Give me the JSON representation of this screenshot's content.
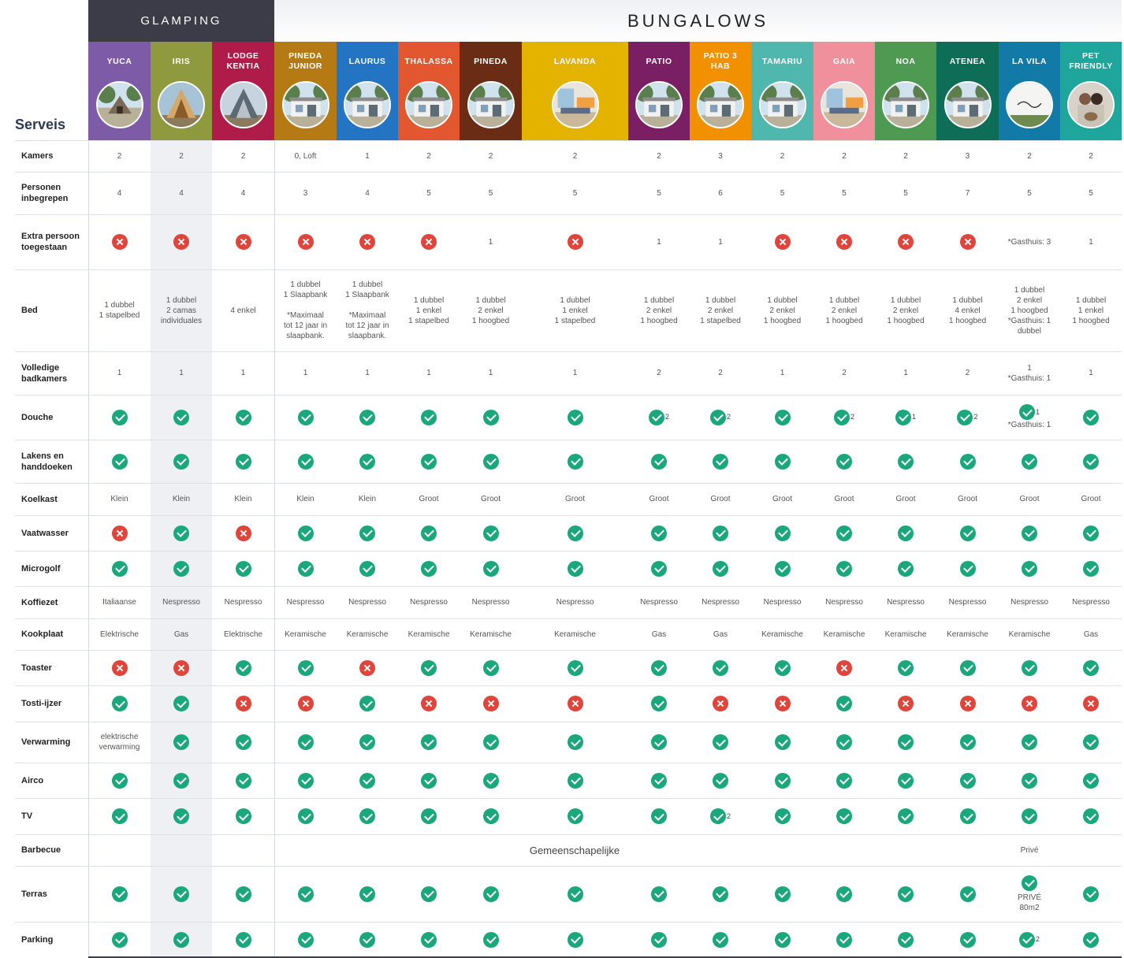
{
  "groups": {
    "glamping": "GLAMPING",
    "bungalows": "BUNGALOWS"
  },
  "side_title": "Serveis",
  "colors": {
    "check": "#1aa77c",
    "cross": "#e0443a",
    "dark_header": "#3c3c48"
  },
  "accommodations": [
    {
      "name": "YUCA",
      "color": "#7d5ba6",
      "photo_icon": "glamping-tent-photo"
    },
    {
      "name": "IRIS",
      "color": "#8f9a3e",
      "photo_icon": "a-frame-cabin-photo"
    },
    {
      "name": "LODGE KENTIA",
      "color": "#b01c4a",
      "photo_icon": "a-frame-lodge-photo"
    },
    {
      "name": "PINEDA JUNIOR",
      "color": "#b67a14",
      "photo_icon": "bungalow-photo"
    },
    {
      "name": "LAURUS",
      "color": "#2374c3",
      "photo_icon": "bungalow-photo"
    },
    {
      "name": "THALASSA",
      "color": "#e2572f",
      "photo_icon": "bungalow-photo"
    },
    {
      "name": "PINEDA",
      "color": "#6b2c16",
      "photo_icon": "bungalow-photo"
    },
    {
      "name": "LAVANDA",
      "color": "#e3b300",
      "photo_icon": "interior-photo"
    },
    {
      "name": "PATIO",
      "color": "#7b1f64",
      "photo_icon": "bungalow-photo"
    },
    {
      "name": "PATIO 3 HAB",
      "color": "#f29100",
      "photo_icon": "bungalow-photo"
    },
    {
      "name": "TAMARIU",
      "color": "#4fb7ad",
      "photo_icon": "bungalow-photo"
    },
    {
      "name": "GAIA",
      "color": "#f0909c",
      "photo_icon": "interior-photo"
    },
    {
      "name": "NOA",
      "color": "#4e9a52",
      "photo_icon": "bungalow-photo"
    },
    {
      "name": "ATENEA",
      "color": "#0d6d56",
      "photo_icon": "bungalow-photo"
    },
    {
      "name": "LA VILA",
      "color": "#127aa7",
      "photo_icon": "la-vila-logo-photo"
    },
    {
      "name": "PET FRIENDLY",
      "color": "#1ea69c",
      "photo_icon": "dog-family-photo"
    }
  ],
  "rows": [
    {
      "label": "Kamers",
      "cells": [
        "2",
        "2",
        "2",
        "0, Loft",
        "1",
        "2",
        "2",
        "2",
        "2",
        "3",
        "2",
        "2",
        "2",
        "3",
        "2",
        "2"
      ]
    },
    {
      "label": "Personen inbegrepen",
      "cells": [
        "4",
        "4",
        "4",
        "3",
        "4",
        "5",
        "5",
        "5",
        "5",
        "6",
        "5",
        "5",
        "5",
        "7",
        "5",
        "5"
      ]
    },
    {
      "label": "Extra persoon toegestaan",
      "cells": [
        "x",
        "x",
        "x",
        "x",
        "x",
        "x",
        "1",
        "x",
        "1",
        "1",
        "x",
        "x",
        "x",
        "x",
        "*Gasthuis: 3",
        "1"
      ]
    },
    {
      "label": "Bed",
      "cells": [
        "1 dubbel\n1 stapelbed",
        "1 dubbel\n2 camas\nindividuales",
        "4 enkel",
        "1 dubbel\n1 Slaapbank\n\n*Maximaal\ntot 12 jaar in\nslaapbank.",
        "1 dubbel\n1 Slaapbank\n\n*Maximaal\ntot 12 jaar in\nslaapbank.",
        "1 dubbel\n1 enkel\n1 stapelbed",
        "1 dubbel\n2 enkel\n1 hoogbed",
        "1 dubbel\n1 enkel\n1 stapelbed",
        "1 dubbel\n2 enkel\n1 hoogbed",
        "1 dubbel\n2 enkel\n1 stapelbed",
        "1 dubbel\n2 enkel\n1 hoogbed",
        "1 dubbel\n2 enkel\n1 hoogbed",
        "1 dubbel\n2 enkel\n1 hoogbed",
        "1 dubbel\n4 enkel\n1 hoogbed",
        "1 dubbel\n2 enkel\n1 hoogbed\n*Gasthuis: 1\ndubbel",
        "1 dubbel\n1 enkel\n1 hoogbed"
      ]
    },
    {
      "label": "Volledige badkamers",
      "cells": [
        "1",
        "1",
        "1",
        "1",
        "1",
        "1",
        "1",
        "1",
        "2",
        "2",
        "1",
        "2",
        "1",
        "2",
        "1\n*Gasthuis: 1",
        "1"
      ]
    },
    {
      "label": "Douche",
      "cells": [
        "v",
        "v",
        "v",
        "v",
        "v",
        "v",
        "v",
        "v",
        "v|2",
        "v|2",
        "v",
        "v|2",
        "v|1",
        "v|2",
        "v|1|*Gasthuis: 1",
        "v"
      ]
    },
    {
      "label": "Lakens en handdoeken",
      "cells": [
        "v",
        "v",
        "v",
        "v",
        "v",
        "v",
        "v",
        "v",
        "v",
        "v",
        "v",
        "v",
        "v",
        "v",
        "v",
        "v"
      ]
    },
    {
      "label": "Koelkast",
      "cells": [
        "Klein",
        "Klein",
        "Klein",
        "Klein",
        "Klein",
        "Groot",
        "Groot",
        "Groot",
        "Groot",
        "Groot",
        "Groot",
        "Groot",
        "Groot",
        "Groot",
        "Groot",
        "Groot"
      ]
    },
    {
      "label": "Vaatwasser",
      "cells": [
        "x",
        "v",
        "x",
        "v",
        "v",
        "v",
        "v",
        "v",
        "v",
        "v",
        "v",
        "v",
        "v",
        "v",
        "v",
        "v"
      ]
    },
    {
      "label": "Microgolf",
      "cells": [
        "v",
        "v",
        "v",
        "v",
        "v",
        "v",
        "v",
        "v",
        "v",
        "v",
        "v",
        "v",
        "v",
        "v",
        "v",
        "v"
      ]
    },
    {
      "label": "Koffiezet",
      "cells": [
        "Italiaanse",
        "Nespresso",
        "Nespresso",
        "Nespresso",
        "Nespresso",
        "Nespresso",
        "Nespresso",
        "Nespresso",
        "Nespresso",
        "Nespresso",
        "Nespresso",
        "Nespresso",
        "Nespresso",
        "Nespresso",
        "Nespresso",
        "Nespresso"
      ]
    },
    {
      "label": "Kookplaat",
      "cells": [
        "Elektrische",
        "Gas",
        "Elektrische",
        "Keramische",
        "Keramische",
        "Keramische",
        "Keramische",
        "Keramische",
        "Gas",
        "Gas",
        "Keramische",
        "Keramische",
        "Keramische",
        "Keramische",
        "Keramische",
        "Gas"
      ]
    },
    {
      "label": "Toaster",
      "cells": [
        "x",
        "x",
        "v",
        "v",
        "x",
        "v",
        "v",
        "v",
        "v",
        "v",
        "v",
        "x",
        "v",
        "v",
        "v",
        "v"
      ]
    },
    {
      "label": "Tosti-ijzer",
      "cells": [
        "v",
        "v",
        "x",
        "x",
        "v",
        "x",
        "x",
        "x",
        "v",
        "x",
        "x",
        "v",
        "x",
        "x",
        "x",
        "x"
      ]
    },
    {
      "label": "Verwarming",
      "cells": [
        "elektrische\nverwarming",
        "v",
        "v",
        "v",
        "v",
        "v",
        "v",
        "v",
        "v",
        "v",
        "v",
        "v",
        "v",
        "v",
        "v",
        "v"
      ]
    },
    {
      "label": "Airco",
      "cells": [
        "v",
        "v",
        "v",
        "v",
        "v",
        "v",
        "v",
        "v",
        "v",
        "v",
        "v",
        "v",
        "v",
        "v",
        "v",
        "v"
      ]
    },
    {
      "label": "TV",
      "cells": [
        "v",
        "v",
        "v",
        "v",
        "v",
        "v",
        "v",
        "v",
        "v",
        "v|2",
        "v",
        "v",
        "v",
        "v",
        "v",
        "v"
      ]
    },
    {
      "label": "Barbecue",
      "common": "Gemeenschapelijke",
      "cells": [
        "",
        "",
        "",
        "",
        "",
        "",
        "",
        "",
        "",
        "",
        "",
        "",
        "",
        "",
        "Privé",
        ""
      ]
    },
    {
      "label": "Terras",
      "cells": [
        "v",
        "v",
        "v",
        "v",
        "v",
        "v",
        "v",
        "v",
        "v",
        "v",
        "v",
        "v",
        "v",
        "v",
        "v|PRIVÉ\n80m2",
        "v"
      ]
    },
    {
      "label": "Parking",
      "cells": [
        "v",
        "v",
        "v",
        "v",
        "v",
        "v",
        "v",
        "v",
        "v",
        "v",
        "v",
        "v",
        "v",
        "v",
        "v|2",
        "v"
      ]
    }
  ]
}
